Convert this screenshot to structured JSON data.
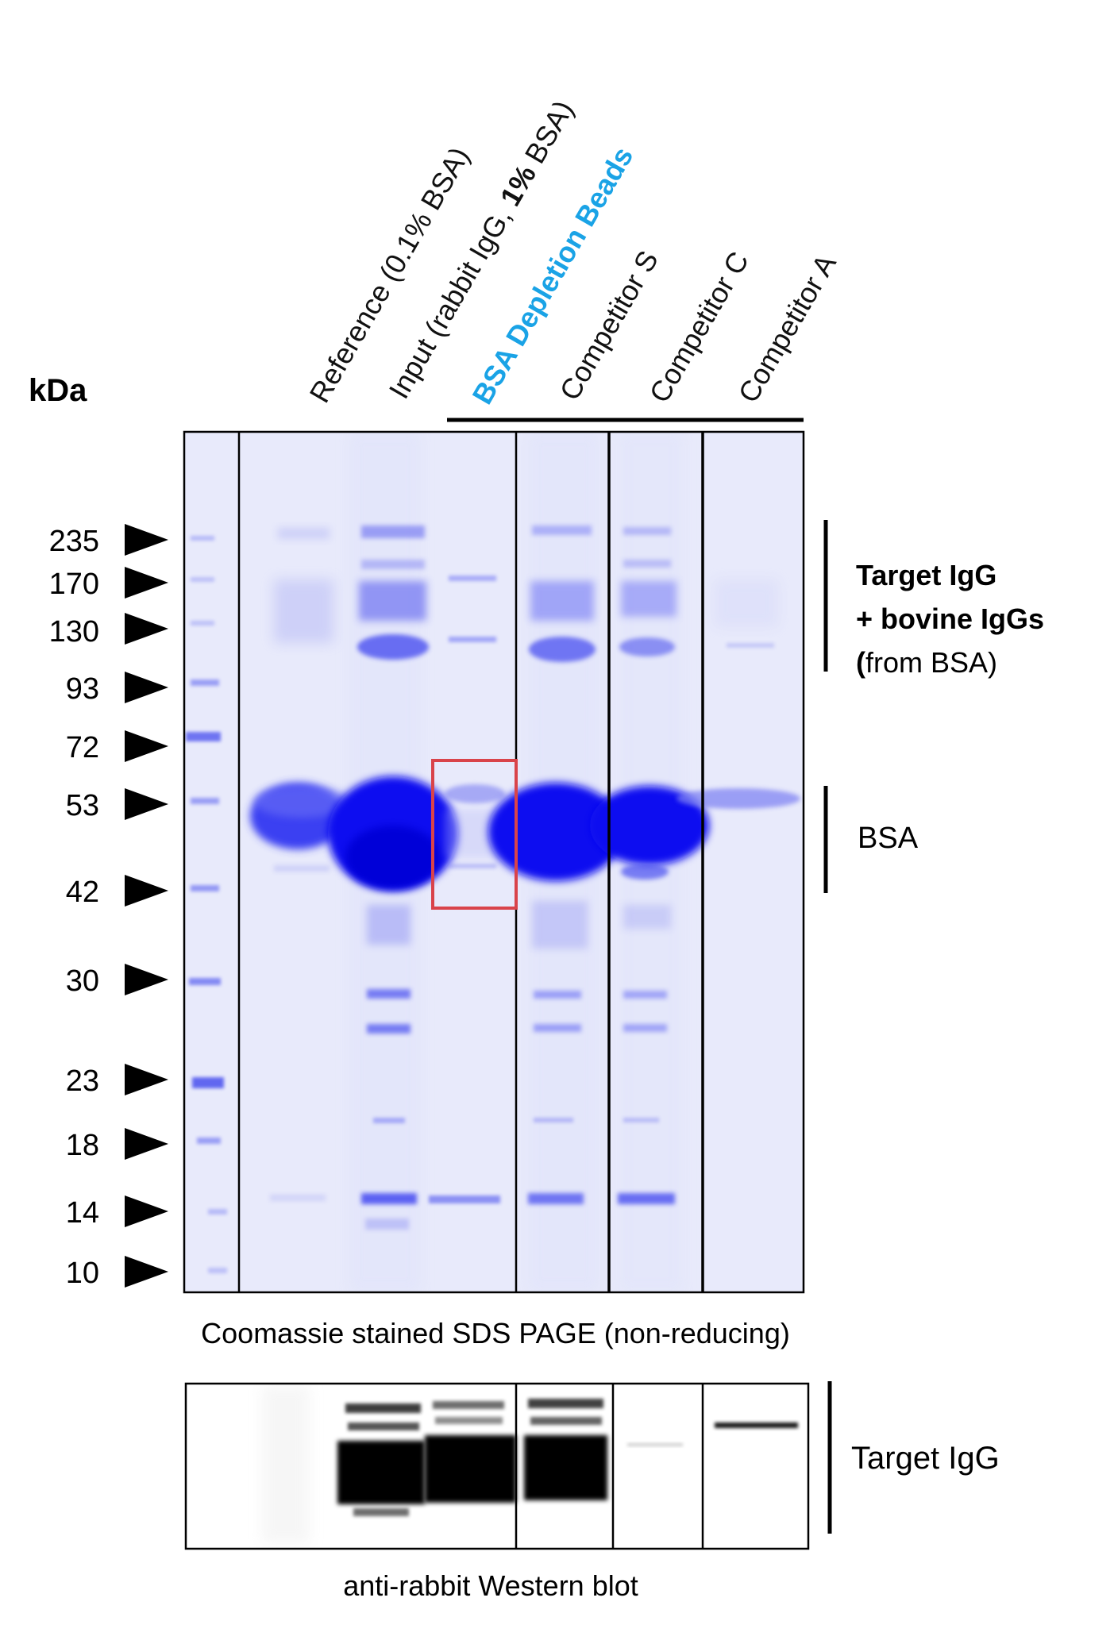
{
  "colors": {
    "stain": "#2a2ff0",
    "background_gel": "#e7e9fb",
    "highlight_box": "#d9434a",
    "beads_label": "#1aa3e6",
    "blot_band": "#000000"
  },
  "kda_label": "kDa",
  "markers": [
    "235",
    "170",
    "130",
    "93",
    "72",
    "53",
    "42",
    "30",
    "23",
    "18",
    "14",
    "10"
  ],
  "lanes": [
    {
      "label": "Reference (0.1% BSA)"
    },
    {
      "label_pre": "Input (rabbit IgG, ",
      "label_bold": "1%",
      "label_post": " BSA)"
    },
    {
      "label": "BSA Depletion Beads"
    },
    {
      "label": "Competitor S"
    },
    {
      "label": "Competitor C"
    },
    {
      "label": "Competitor A"
    }
  ],
  "annotations": {
    "igg_line1": "Target IgG",
    "igg_line2": "+ bovine IgGs",
    "igg_line3_paren": "(",
    "igg_line3_rest": "from BSA)",
    "bsa": "BSA",
    "blot_target": "Target IgG"
  },
  "captions": {
    "gel": "Coomassie stained SDS PAGE (non-reducing)",
    "blot": "anti-rabbit Western blot"
  }
}
